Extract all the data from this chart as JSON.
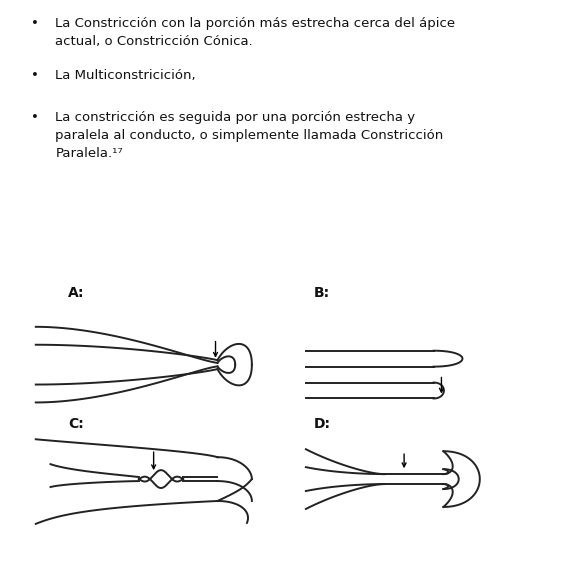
{
  "background_color": "#ffffff",
  "text_color": "#111111",
  "line_color": "#222222",
  "bullet1_line1": "La Constricción con la porción más estrecha cerca del ápice",
  "bullet1_line2": "actual, o Constricción Cónica.",
  "bullet2_line1": "La Multiconstricición,",
  "bullet3_line1": "La constricción es seguida por una porción estrecha y",
  "bullet3_line2": "paralela al conducto, o simplemente llamada Constricción",
  "bullet3_line3": "Paralela.¹⁷",
  "label_A": "A:",
  "label_B": "B:",
  "label_C": "C:",
  "label_D": "D:",
  "fontsize_body": 9.5,
  "fontsize_label": 10
}
